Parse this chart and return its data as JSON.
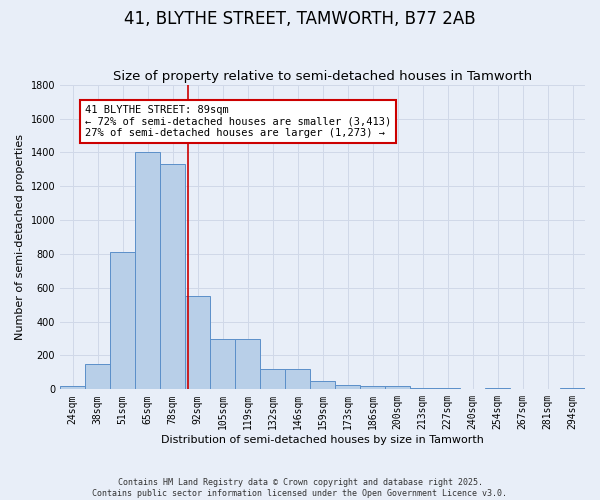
{
  "title": "41, BLYTHE STREET, TAMWORTH, B77 2AB",
  "subtitle": "Size of property relative to semi-detached houses in Tamworth",
  "xlabel": "Distribution of semi-detached houses by size in Tamworth",
  "ylabel": "Number of semi-detached properties",
  "categories": [
    "24sqm",
    "38sqm",
    "51sqm",
    "65sqm",
    "78sqm",
    "92sqm",
    "105sqm",
    "119sqm",
    "132sqm",
    "146sqm",
    "159sqm",
    "173sqm",
    "186sqm",
    "200sqm",
    "213sqm",
    "227sqm",
    "240sqm",
    "254sqm",
    "267sqm",
    "281sqm",
    "294sqm"
  ],
  "values": [
    20,
    150,
    810,
    1400,
    1330,
    550,
    295,
    295,
    120,
    120,
    50,
    25,
    20,
    20,
    5,
    5,
    0,
    5,
    0,
    0,
    10
  ],
  "bar_color": "#b8cfe8",
  "bar_edge_color": "#5b8fc9",
  "vline_x": 4.6,
  "vline_color": "#cc0000",
  "annotation_text": "41 BLYTHE STREET: 89sqm\n← 72% of semi-detached houses are smaller (3,413)\n27% of semi-detached houses are larger (1,273) →",
  "annotation_box_color": "#ffffff",
  "annotation_box_edge": "#cc0000",
  "ylim": [
    0,
    1800
  ],
  "yticks": [
    0,
    200,
    400,
    600,
    800,
    1000,
    1200,
    1400,
    1600,
    1800
  ],
  "grid_color": "#d0d8e8",
  "bg_color": "#e8eef8",
  "footer": "Contains HM Land Registry data © Crown copyright and database right 2025.\nContains public sector information licensed under the Open Government Licence v3.0.",
  "title_fontsize": 12,
  "subtitle_fontsize": 9.5,
  "axis_label_fontsize": 8,
  "tick_fontsize": 7,
  "annotation_fontsize": 7.5,
  "footer_fontsize": 6
}
